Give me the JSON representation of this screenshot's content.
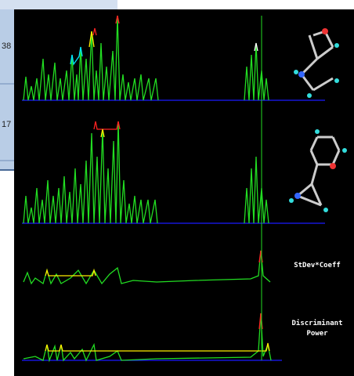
{
  "left_panel": {
    "labels": [
      "38",
      "17"
    ]
  },
  "plots": [
    {
      "label": "StDev*Coeff"
    },
    {
      "label_lines": [
        "Discriminant",
        "Power"
      ]
    }
  ]
}
